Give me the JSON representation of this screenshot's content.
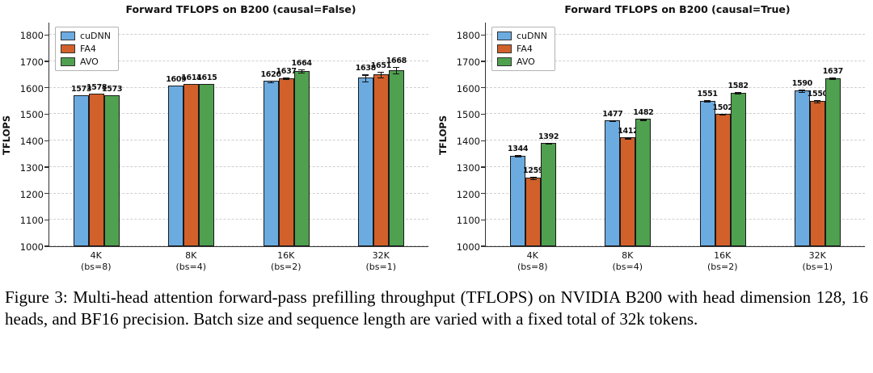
{
  "figure": {
    "caption": "Figure 3: Multi-head attention forward-pass prefilling throughput (TFLOPS) on NVIDIA B200 with head dimension 128, 16 heads, and BF16 precision. Batch size and sequence length are varied with a fixed total of 32k tokens."
  },
  "colors": {
    "cuDNN": "#6cabe0",
    "FA4": "#d2602a",
    "AVO": "#4fa04f",
    "bar_edge": "#1a1a1a"
  },
  "chart_data": [
    {
      "type": "bar",
      "title": "Forward TFLOPS on B200 (causal=False)",
      "xlabel": "",
      "ylabel": "TFLOPS",
      "ylim": [
        1000,
        1850
      ],
      "yticks": [
        1000,
        1100,
        1200,
        1300,
        1400,
        1500,
        1600,
        1700,
        1800
      ],
      "grid": true,
      "legend_position": "upper left",
      "categories": [
        {
          "line1": "4K",
          "line2": "(bs=8)"
        },
        {
          "line1": "8K",
          "line2": "(bs=4)"
        },
        {
          "line1": "16K",
          "line2": "(bs=2)"
        },
        {
          "line1": "32K",
          "line2": "(bs=1)"
        }
      ],
      "series": [
        {
          "name": "cuDNN",
          "values": [
            1573,
            1609,
            1626,
            1638
          ],
          "errors": [
            3,
            3,
            5,
            15
          ]
        },
        {
          "name": "FA4",
          "values": [
            1578,
            1614,
            1637,
            1651
          ],
          "errors": [
            3,
            3,
            5,
            12
          ]
        },
        {
          "name": "AVO",
          "values": [
            1573,
            1615,
            1664,
            1668
          ],
          "errors": [
            3,
            3,
            8,
            15
          ]
        }
      ]
    },
    {
      "type": "bar",
      "title": "Forward TFLOPS on B200 (causal=True)",
      "xlabel": "",
      "ylabel": "TFLOPS",
      "ylim": [
        1000,
        1850
      ],
      "yticks": [
        1000,
        1100,
        1200,
        1300,
        1400,
        1500,
        1600,
        1700,
        1800
      ],
      "grid": true,
      "legend_position": "upper left",
      "categories": [
        {
          "line1": "4K",
          "line2": "(bs=8)"
        },
        {
          "line1": "8K",
          "line2": "(bs=4)"
        },
        {
          "line1": "16K",
          "line2": "(bs=2)"
        },
        {
          "line1": "32K",
          "line2": "(bs=1)"
        }
      ],
      "series": [
        {
          "name": "cuDNN",
          "values": [
            1344,
            1477,
            1551,
            1590
          ],
          "errors": [
            4,
            4,
            5,
            5
          ]
        },
        {
          "name": "FA4",
          "values": [
            1259,
            1412,
            1502,
            1550
          ],
          "errors": [
            6,
            4,
            4,
            6
          ]
        },
        {
          "name": "AVO",
          "values": [
            1392,
            1482,
            1582,
            1637
          ],
          "errors": [
            4,
            4,
            5,
            5
          ]
        }
      ]
    }
  ]
}
